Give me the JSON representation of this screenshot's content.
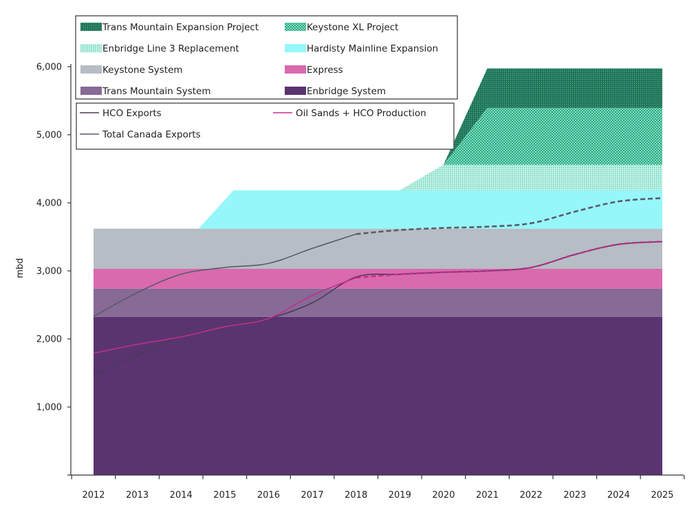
{
  "chart_data": {
    "type": "area",
    "title": "",
    "xlabel": "",
    "ylabel": "mbd",
    "ylim": [
      0,
      6000
    ],
    "yticks": [
      1000,
      2000,
      3000,
      4000,
      5000,
      6000
    ],
    "ytick_labels": [
      "1,000",
      "2,000",
      "3,000",
      "4,000",
      "5,000",
      "6,000"
    ],
    "categories": [
      "2012",
      "2013",
      "2014",
      "2015",
      "2016",
      "2017",
      "2018",
      "2019",
      "2020",
      "2021",
      "2022",
      "2023",
      "2024",
      "2025"
    ],
    "x": [
      2012,
      2013,
      2014,
      2015,
      2016,
      2017,
      2018,
      2019,
      2020,
      2021,
      2022,
      2023,
      2024,
      2025
    ],
    "grid": false,
    "stacked_areas": [
      {
        "name": "Enbridge System",
        "color": "#5a3470",
        "pattern": "solid",
        "points": [
          [
            2012,
            2325
          ],
          [
            2025,
            2325
          ]
        ]
      },
      {
        "name": "Trans Mountain System",
        "color": "#876a95",
        "pattern": "solid",
        "points": [
          [
            2012,
            415
          ],
          [
            2025,
            415
          ]
        ]
      },
      {
        "name": "Express",
        "color": "#d96aae",
        "pattern": "solid",
        "points": [
          [
            2012,
            290
          ],
          [
            2025,
            290
          ]
        ]
      },
      {
        "name": "Keystone System",
        "color": "#b7bdc4",
        "pattern": "solid",
        "points": [
          [
            2012,
            590
          ],
          [
            2025,
            590
          ]
        ]
      },
      {
        "name": "Hardisty Mainline Expansion",
        "color": "#96f7fa",
        "pattern": "solid",
        "points": [
          [
            2012,
            0
          ],
          [
            2014.4,
            0
          ],
          [
            2015.2,
            565
          ],
          [
            2025,
            565
          ]
        ]
      },
      {
        "name": "Enbridge Line 3 Replacement",
        "color": "#7fd9c0",
        "pattern": "fine-dots",
        "points": [
          [
            2012,
            0
          ],
          [
            2019,
            0
          ],
          [
            2020,
            375
          ],
          [
            2025,
            375
          ]
        ]
      },
      {
        "name": "Keystone XL Project",
        "color": "#3cbf98",
        "pattern": "dots",
        "points": [
          [
            2012,
            0
          ],
          [
            2020,
            0
          ],
          [
            2021,
            835
          ],
          [
            2025,
            835
          ]
        ]
      },
      {
        "name": "Trans Mountain Expansion Project",
        "color": "#1f7a5e",
        "pattern": "dense-dots",
        "points": [
          [
            2012,
            0
          ],
          [
            2020,
            0
          ],
          [
            2021,
            580
          ],
          [
            2025,
            580
          ]
        ]
      }
    ],
    "series": [
      {
        "name": "HCO Exports",
        "color": "#4a3a55",
        "style": "solid",
        "values": [
          1480,
          1760,
          2030,
          2190,
          2300,
          2530,
          2910,
          2950,
          2980,
          3000,
          3050,
          3240,
          3390,
          3430
        ]
      },
      {
        "name": "Oil Sands + HCO Production",
        "color": "#c0308e",
        "style": "solid-then-dashed",
        "values": [
          1790,
          1920,
          2030,
          2180,
          2300,
          2640,
          2900,
          2950,
          2980,
          3000,
          3050,
          3240,
          3390,
          3430
        ]
      },
      {
        "name": "Total Canada Exports",
        "color": "#5a5a6a",
        "style": "solid-then-dashed",
        "values": [
          2330,
          2680,
          2950,
          3050,
          3110,
          3330,
          3540,
          3600,
          3630,
          3650,
          3700,
          3870,
          4020,
          4070
        ]
      }
    ],
    "forecast_start": 2018,
    "legend": {
      "placement": "top-left",
      "areas": [
        [
          "Trans Mountain Expansion Project",
          "Keystone XL Project"
        ],
        [
          "Enbridge Line 3 Replacement",
          "Hardisty Mainline Expansion"
        ],
        [
          "Keystone System",
          "Express"
        ],
        [
          "Trans Mountain System",
          "Enbridge System"
        ]
      ],
      "lines": [
        [
          "HCO Exports",
          "Oil Sands + HCO Production"
        ],
        [
          "Total Canada Exports",
          ""
        ]
      ]
    }
  }
}
